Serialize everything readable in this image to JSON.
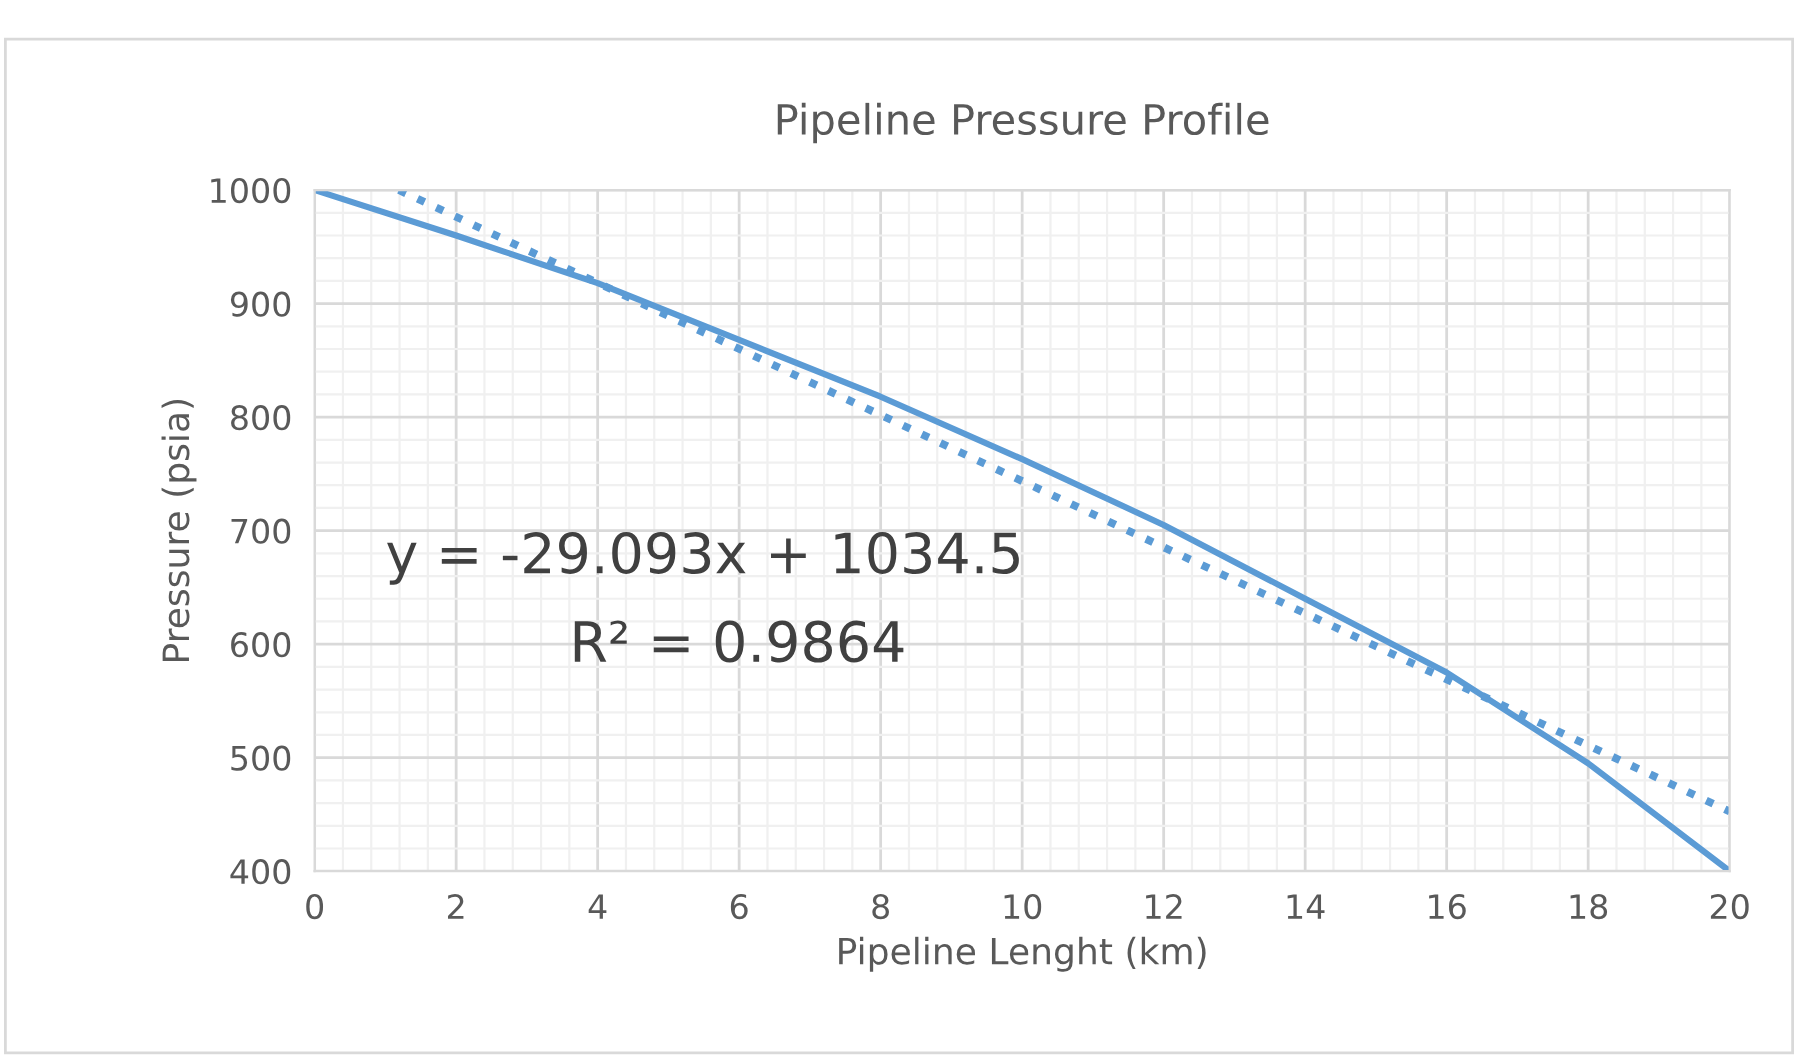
{
  "chart_data": {
    "type": "line",
    "title": "Pipeline Pressure Profile",
    "xlabel": "Pipeline Lenght (km)",
    "ylabel": "Pressure (psia)",
    "x": [
      0,
      2,
      4,
      6,
      8,
      10,
      12,
      14,
      16,
      18,
      20
    ],
    "series": [
      {
        "color": "#5b9bd5",
        "values": [
          1000,
          960,
          918,
          868,
          818,
          763,
          705,
          640,
          575,
          495,
          400
        ],
        "line_style": "solid"
      },
      {
        "type": "line",
        "color": "#5b9bd5",
        "x": [
          1.19,
          20
        ],
        "values": [
          1000,
          452.6
        ],
        "line_style": "dotted"
      }
    ],
    "annotations": [
      "y = -29.093x + 1034.5",
      "R² = 0.9864"
    ],
    "xlim": [
      0,
      20
    ],
    "xticks": [
      0,
      2,
      4,
      6,
      8,
      10,
      12,
      14,
      16,
      18,
      20
    ],
    "ylim": [
      400,
      1000
    ],
    "yticks": [
      400,
      500,
      600,
      700,
      800,
      900,
      1000
    ],
    "grid": true,
    "marker": "none",
    "legend": false
  }
}
